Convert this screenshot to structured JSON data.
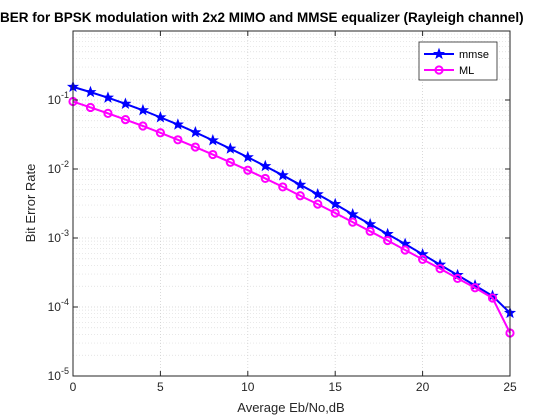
{
  "chart_data": {
    "type": "line",
    "title": "BER for BPSK modulation with 2x2 MIMO and MMSE equalizer (Rayleigh channel)",
    "xlabel": "Average Eb/No,dB",
    "ylabel": "Bit Error Rate",
    "xlim": [
      0,
      25
    ],
    "ylim": [
      1e-05,
      1
    ],
    "yscale": "log",
    "grid": true,
    "legend_position": "top-right",
    "x_ticks": [
      "0",
      "5",
      "10",
      "15",
      "20",
      "25"
    ],
    "y_tick_exponents": [
      -5,
      -4,
      -3,
      -2,
      -1
    ],
    "y_tick_base": "10",
    "x": [
      0,
      1,
      2,
      3,
      4,
      5,
      6,
      7,
      8,
      9,
      10,
      11,
      12,
      13,
      14,
      15,
      16,
      17,
      18,
      19,
      20,
      21,
      22,
      23,
      24,
      25
    ],
    "series": [
      {
        "name": "mmse",
        "color": "#0000ff",
        "marker": "star",
        "values": [
          0.155,
          0.13,
          0.108,
          0.088,
          0.071,
          0.056,
          0.044,
          0.034,
          0.026,
          0.0197,
          0.0148,
          0.011,
          0.0081,
          0.0059,
          0.0043,
          0.0031,
          0.0022,
          0.00158,
          0.00114,
          0.00082,
          0.00058,
          0.00041,
          0.00029,
          0.000205,
          0.000145,
          8.2e-05
        ]
      },
      {
        "name": "ML",
        "color": "#ff00ff",
        "marker": "circle",
        "values": [
          0.095,
          0.078,
          0.064,
          0.052,
          0.042,
          0.0335,
          0.0265,
          0.0208,
          0.0162,
          0.0125,
          0.0096,
          0.0073,
          0.0055,
          0.0041,
          0.0031,
          0.0023,
          0.0017,
          0.00125,
          0.00092,
          0.00067,
          0.00049,
          0.00036,
          0.00026,
          0.00019,
          0.000135,
          4.2e-05
        ]
      }
    ]
  }
}
